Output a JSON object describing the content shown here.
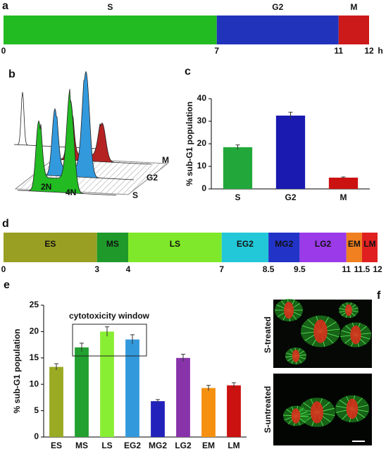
{
  "chart_data": [
    {
      "type": "timeline",
      "panel": "a",
      "categories": [
        "S",
        "G2",
        "M"
      ],
      "values": [
        7,
        4,
        1
      ],
      "colors": [
        "#22bb22",
        "#2233bb",
        "#cc1a1a"
      ],
      "xlim": [
        0,
        12
      ],
      "xticks": [
        0,
        7,
        11,
        12
      ],
      "unit": "h"
    },
    {
      "type": "bar",
      "panel": "c",
      "categories": [
        "S",
        "G2",
        "M"
      ],
      "values": [
        18.5,
        32.5,
        5
      ],
      "errors": [
        1,
        1.5,
        0.3
      ],
      "colors": [
        "#22a83a",
        "#1a1ab0",
        "#cc1111"
      ],
      "ylim": [
        0,
        40
      ],
      "yticks": [
        0,
        10,
        20,
        30,
        40
      ],
      "y_label": "% sub-G1 population"
    },
    {
      "type": "timeline",
      "panel": "d",
      "categories": [
        "ES",
        "MS",
        "LS",
        "EG2",
        "MG2",
        "LG2",
        "EM",
        "LM"
      ],
      "values": [
        3,
        1,
        3,
        1.5,
        1,
        1.5,
        0.5,
        0.5
      ],
      "colors": [
        "#999f22",
        "#1f9a2a",
        "#80e82a",
        "#22c8d8",
        "#2233c8",
        "#9a3ae8",
        "#f08020",
        "#e02020"
      ],
      "xlim": [
        0,
        12
      ],
      "xticks": [
        0,
        3,
        4,
        7,
        8.5,
        9.5,
        11,
        11.5,
        12
      ],
      "unit": "h"
    },
    {
      "type": "bar",
      "panel": "e",
      "categories": [
        "ES",
        "MS",
        "LS",
        "EG2",
        "MG2",
        "LG2",
        "EM",
        "LM"
      ],
      "values": [
        13.3,
        17,
        20,
        18.5,
        6.8,
        15,
        9.3,
        9.8
      ],
      "errors": [
        0.6,
        0.8,
        0.9,
        0.9,
        0.3,
        0.7,
        0.5,
        0.5
      ],
      "colors": [
        "#9aaa22",
        "#22a030",
        "#88ee33",
        "#3399dd",
        "#2222bb",
        "#8833aa",
        "#f59010",
        "#cc1111"
      ],
      "ylim": [
        0,
        25
      ],
      "yticks": [
        0,
        5,
        10,
        15,
        20,
        25
      ],
      "y_label": "% sub-G1 population",
      "annotation": "cytotoxicity window"
    }
  ],
  "panel_b": {
    "panel": "b",
    "axis_labels": [
      "M",
      "G2",
      "S"
    ],
    "peak_labels": [
      "2N",
      "4N"
    ]
  },
  "panel_f": {
    "panel": "f",
    "image_labels": [
      "S-treated",
      "S-untreated"
    ]
  }
}
